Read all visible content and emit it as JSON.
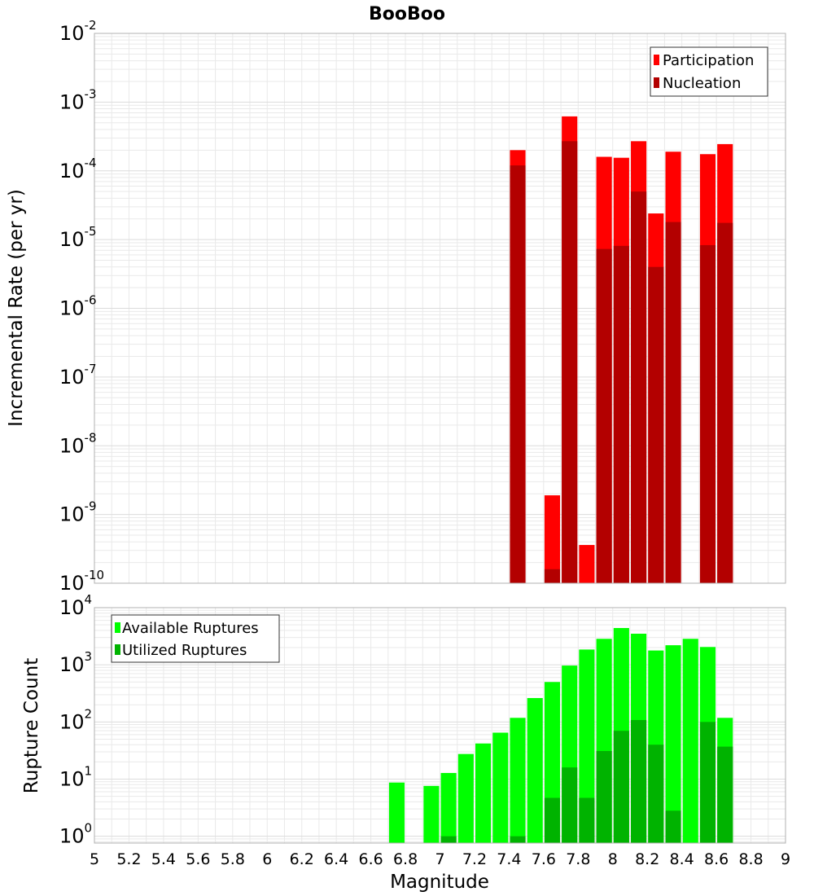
{
  "title": "BooBoo",
  "xlabel": "Magnitude",
  "x_ticks": [
    "5",
    "5.2",
    "5.4",
    "5.6",
    "5.8",
    "6",
    "6.2",
    "6.4",
    "6.6",
    "6.8",
    "7",
    "7.2",
    "7.4",
    "7.6",
    "7.8",
    "8",
    "8.2",
    "8.4",
    "8.6",
    "8.8",
    "9"
  ],
  "colors": {
    "participation": "#ff0000",
    "nucleation": "#b30000",
    "available": "#00ff00",
    "utilized": "#00b300",
    "grid": "#e9e9e9",
    "frame": "#b0b0b0"
  },
  "chart_data": [
    {
      "type": "bar",
      "ylabel": "Incremental Rate (per yr)",
      "yscale": "log",
      "xlim": [
        5,
        9
      ],
      "ylim": [
        1e-10,
        0.01
      ],
      "y_tick_exponents": [
        "-2",
        "-3",
        "-4",
        "-5",
        "-6",
        "-7",
        "-8",
        "-9",
        "-10"
      ],
      "legend_position": "top-right",
      "bar_width": 0.09,
      "series": [
        {
          "name": "Participation",
          "x": [
            7.45,
            7.65,
            7.75,
            7.85,
            7.95,
            8.05,
            8.15,
            8.25,
            8.35,
            8.55,
            8.65
          ],
          "values": [
            0.0002,
            1.9e-09,
            0.00062,
            3.6e-10,
            0.00016,
            0.000155,
            0.00027,
            2.4e-05,
            0.00019,
            0.000175,
            0.000245
          ]
        },
        {
          "name": "Nucleation",
          "x": [
            7.45,
            7.65,
            7.75,
            7.95,
            8.05,
            8.15,
            8.25,
            8.35,
            8.55,
            8.65
          ],
          "values": [
            0.00012,
            1.6e-10,
            0.00027,
            7.3e-06,
            8.1e-06,
            5e-05,
            4e-06,
            1.8e-05,
            8.3e-06,
            1.75e-05
          ]
        }
      ]
    },
    {
      "type": "bar",
      "ylabel": "Rupture Count",
      "yscale": "log",
      "xlim": [
        5,
        9
      ],
      "ylim": [
        0.76,
        10000
      ],
      "y_tick_exponents": [
        "4",
        "3",
        "2",
        "1",
        "0"
      ],
      "legend_position": "top-left",
      "bar_width": 0.09,
      "series": [
        {
          "name": "Available Ruptures",
          "x": [
            6.75,
            6.95,
            7.05,
            7.15,
            7.25,
            7.35,
            7.45,
            7.55,
            7.65,
            7.75,
            7.85,
            7.95,
            8.05,
            8.15,
            8.25,
            8.35,
            8.45,
            8.55,
            8.65
          ],
          "values": [
            8.7,
            7.6,
            12.8,
            27.5,
            42,
            65,
            118,
            262,
            500,
            970,
            1850,
            2850,
            4400,
            3500,
            1780,
            2200,
            2850,
            2050,
            118
          ]
        },
        {
          "name": "Utilized Ruptures",
          "x": [
            7.05,
            7.45,
            7.65,
            7.75,
            7.85,
            7.95,
            8.05,
            8.15,
            8.25,
            8.35,
            8.55,
            8.65
          ],
          "values": [
            1,
            1,
            4.7,
            16,
            4.7,
            31,
            70,
            108,
            40,
            2.8,
            100,
            37
          ]
        }
      ]
    }
  ]
}
